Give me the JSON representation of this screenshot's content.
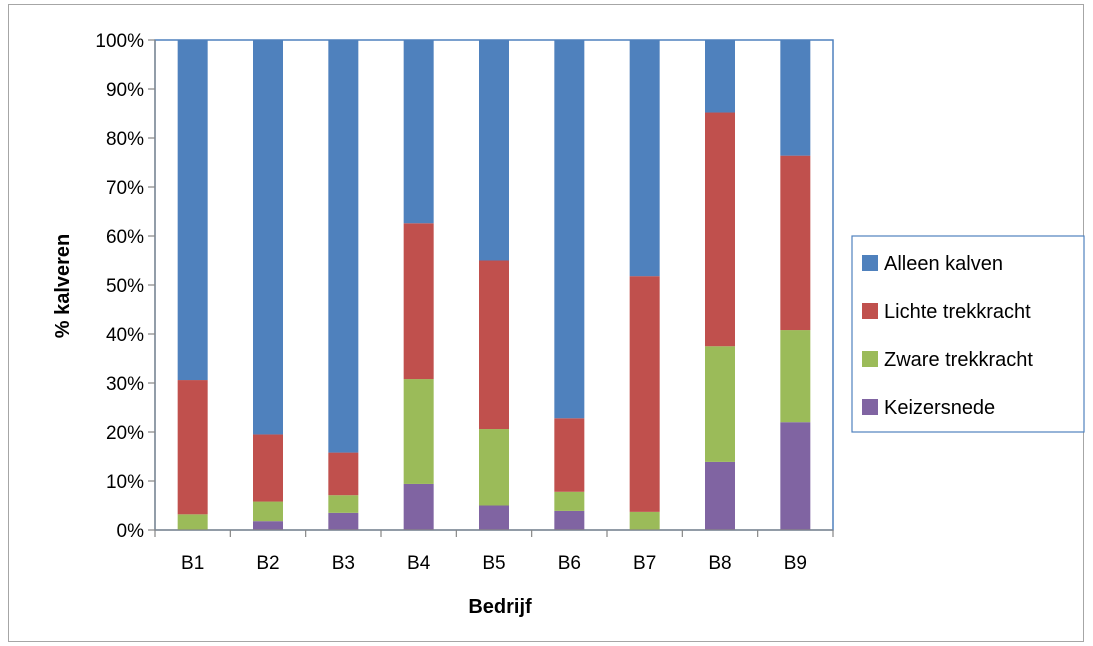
{
  "chart_data": {
    "type": "bar",
    "stacked": true,
    "xlabel": "Bedrijf",
    "ylabel": "% kalveren",
    "ylim": [
      0,
      100
    ],
    "yticks": [
      "0%",
      "10%",
      "20%",
      "30%",
      "40%",
      "50%",
      "60%",
      "70%",
      "80%",
      "90%",
      "100%"
    ],
    "categories": [
      "B1",
      "B2",
      "B3",
      "B4",
      "B5",
      "B6",
      "B7",
      "B8",
      "B9"
    ],
    "series": [
      {
        "name": "Keizersnede",
        "color": "#8064a2",
        "values": [
          0,
          1.8,
          3.5,
          9.4,
          5.0,
          3.9,
          0,
          13.9,
          22.0
        ]
      },
      {
        "name": "Zware trekkracht",
        "color": "#9bbb59",
        "values": [
          3.2,
          4.0,
          3.6,
          21.4,
          15.6,
          3.9,
          3.7,
          23.6,
          18.8
        ]
      },
      {
        "name": "Lichte trekkracht",
        "color": "#c0504d",
        "values": [
          27.4,
          13.7,
          8.7,
          31.8,
          34.4,
          15.0,
          48.1,
          47.7,
          35.6
        ]
      },
      {
        "name": "Alleen kalven",
        "color": "#4f81bd",
        "values": [
          69.4,
          80.5,
          84.2,
          37.4,
          45.0,
          77.2,
          48.2,
          14.8,
          23.6
        ]
      }
    ],
    "legend": {
      "position": "right",
      "order": [
        "Alleen kalven",
        "Lichte trekkracht",
        "Zware trekkracht",
        "Keizersnede"
      ]
    },
    "grid": false
  }
}
